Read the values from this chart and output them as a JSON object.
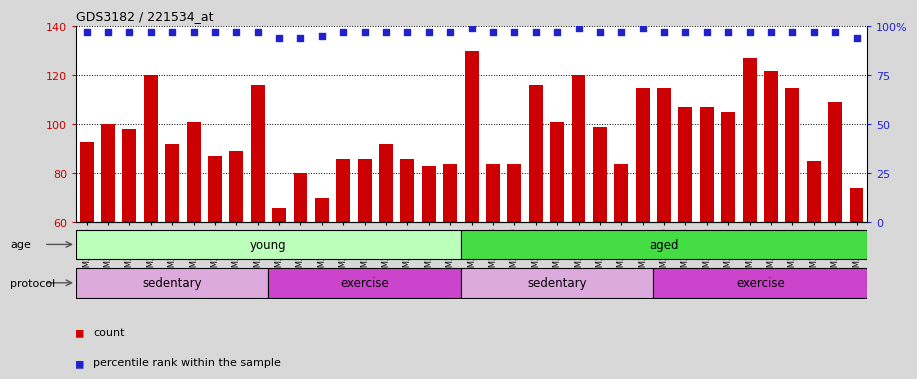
{
  "title": "GDS3182 / 221534_at",
  "samples": [
    "GSM230408",
    "GSM230409",
    "GSM230410",
    "GSM230411",
    "GSM230412",
    "GSM230413",
    "GSM230414",
    "GSM230415",
    "GSM230416",
    "GSM230417",
    "GSM230419",
    "GSM230420",
    "GSM230421",
    "GSM230422",
    "GSM230423",
    "GSM230424",
    "GSM230425",
    "GSM230426",
    "GSM230387",
    "GSM230388",
    "GSM230369",
    "GSM230390",
    "GSM230391",
    "GSM230392",
    "GSM230393",
    "GSM230394",
    "GSM230395",
    "GSM230396",
    "GSM230398",
    "GSM230399",
    "GSM230400",
    "GSM230401",
    "GSM230402",
    "GSM230403",
    "GSM230404",
    "GSM230405",
    "GSM230406"
  ],
  "bar_values": [
    93,
    100,
    98,
    120,
    92,
    101,
    87,
    89,
    116,
    66,
    80,
    70,
    86,
    86,
    92,
    86,
    83,
    84,
    130,
    84,
    84,
    116,
    101,
    120,
    99,
    84,
    115,
    115,
    107,
    107,
    105,
    127,
    122,
    115,
    85,
    109,
    74
  ],
  "percentile_values": [
    97,
    97,
    97,
    97,
    97,
    97,
    97,
    97,
    97,
    94,
    94,
    95,
    97,
    97,
    97,
    97,
    97,
    97,
    99,
    97,
    97,
    97,
    97,
    99,
    97,
    97,
    99,
    97,
    97,
    97,
    97,
    97,
    97,
    97,
    97,
    97,
    94
  ],
  "bar_color": "#cc0000",
  "percentile_color": "#2222cc",
  "ylim_left": [
    60,
    140
  ],
  "ylim_right": [
    0,
    100
  ],
  "yticks_left": [
    60,
    80,
    100,
    120,
    140
  ],
  "yticks_right": [
    0,
    25,
    50,
    75,
    100
  ],
  "grid_values": [
    80,
    100,
    120
  ],
  "age_groups": [
    {
      "label": "young",
      "start": 0,
      "end": 18,
      "color": "#bbffbb"
    },
    {
      "label": "aged",
      "start": 18,
      "end": 37,
      "color": "#44dd44"
    }
  ],
  "protocol_groups": [
    {
      "label": "sedentary",
      "start": 0,
      "end": 9,
      "color": "#ddaadd"
    },
    {
      "label": "exercise",
      "start": 9,
      "end": 18,
      "color": "#cc44cc"
    },
    {
      "label": "sedentary",
      "start": 18,
      "end": 27,
      "color": "#ddaadd"
    },
    {
      "label": "exercise",
      "start": 27,
      "end": 37,
      "color": "#cc44cc"
    }
  ],
  "legend_count_color": "#cc0000",
  "legend_percentile_color": "#2222cc",
  "bg_color": "#d8d8d8",
  "plot_bg_color": "#ffffff"
}
